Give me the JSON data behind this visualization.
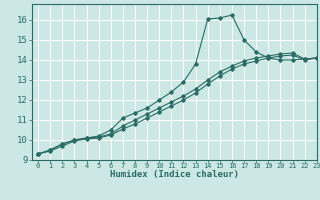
{
  "title": "",
  "xlabel": "Humidex (Indice chaleur)",
  "ylabel": "",
  "bg_color": "#cce8e4",
  "grid_color": "#ffffff",
  "line_color": "#2a6b63",
  "xlim": [
    -0.5,
    23
  ],
  "ylim": [
    9,
    16.8
  ],
  "xticks": [
    0,
    1,
    2,
    3,
    4,
    5,
    6,
    7,
    8,
    9,
    10,
    11,
    12,
    13,
    14,
    15,
    16,
    17,
    18,
    19,
    20,
    21,
    22,
    23
  ],
  "yticks": [
    9,
    10,
    11,
    12,
    13,
    14,
    15,
    16
  ],
  "line1_x": [
    0,
    1,
    2,
    3,
    4,
    5,
    6,
    7,
    8,
    9,
    10,
    11,
    12,
    13,
    14,
    15,
    16,
    17,
    18,
    19,
    20,
    21,
    22,
    23
  ],
  "line1_y": [
    9.3,
    9.5,
    9.8,
    10.0,
    10.1,
    10.2,
    10.5,
    11.1,
    11.35,
    11.6,
    12.0,
    12.4,
    12.9,
    13.8,
    16.05,
    16.1,
    16.25,
    15.0,
    14.4,
    14.1,
    14.0,
    14.0,
    14.05,
    14.1
  ],
  "line2_x": [
    0,
    1,
    2,
    3,
    4,
    5,
    6,
    7,
    8,
    9,
    10,
    11,
    12,
    13,
    14,
    15,
    16,
    17,
    18,
    19,
    20,
    21,
    22,
    23
  ],
  "line2_y": [
    9.3,
    9.5,
    9.8,
    10.0,
    10.1,
    10.15,
    10.3,
    10.7,
    11.0,
    11.3,
    11.6,
    11.9,
    12.2,
    12.55,
    13.0,
    13.4,
    13.7,
    13.95,
    14.1,
    14.2,
    14.3,
    14.35,
    14.05,
    14.1
  ],
  "line3_x": [
    0,
    1,
    2,
    3,
    4,
    5,
    6,
    7,
    8,
    9,
    10,
    11,
    12,
    13,
    14,
    15,
    16,
    17,
    18,
    19,
    20,
    21,
    22,
    23
  ],
  "line3_y": [
    9.3,
    9.45,
    9.7,
    9.95,
    10.05,
    10.1,
    10.25,
    10.55,
    10.8,
    11.1,
    11.4,
    11.7,
    12.0,
    12.35,
    12.8,
    13.2,
    13.55,
    13.8,
    13.95,
    14.1,
    14.2,
    14.25,
    14.0,
    14.1
  ]
}
